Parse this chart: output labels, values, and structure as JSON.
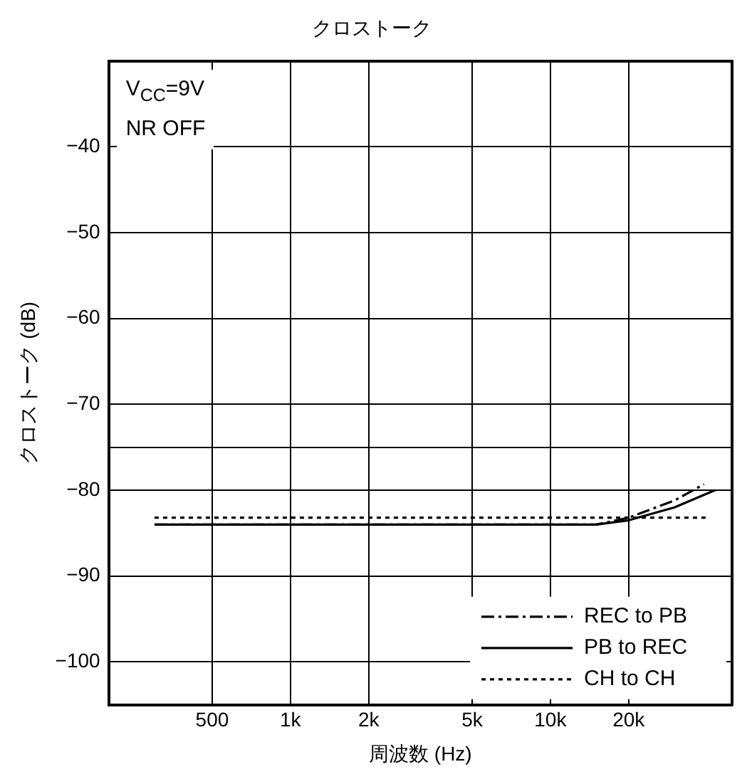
{
  "chart_data": {
    "type": "line",
    "title": "クロストーク",
    "xlabel": "周波数 (Hz)",
    "ylabel": "クロストーク (dB)",
    "annotations": [
      "V$_{CC}$=9V",
      "NR OFF"
    ],
    "log": "x",
    "xlim": [
      200,
      50000
    ],
    "xticks": [
      500,
      {
        "value": 1000,
        "label": "1k"
      },
      {
        "value": 2000,
        "label": "2k"
      },
      {
        "value": 5000,
        "label": "5k"
      },
      {
        "value": 10000,
        "label": "10k"
      },
      {
        "value": 20000,
        "label": "20k"
      }
    ],
    "ylim": [
      -105,
      -30
    ],
    "yticks": [
      -100,
      -90,
      -80,
      {
        "value": -75,
        "label": null
      },
      -70,
      -60,
      -50,
      -40
    ],
    "grid": true,
    "legend": "bottom right",
    "marker": "none",
    "series": [
      {
        "name": "REC to PB",
        "color": "#000000",
        "line_style": "dashed",
        "x": [
          300,
          15000,
          20000,
          30000,
          39000
        ],
        "values": [
          -84,
          -84,
          -83.2,
          -81.2,
          -79.3
        ]
      },
      {
        "name": "PB to REC",
        "color": "#000000",
        "line_style": "solid",
        "x": [
          300,
          15000,
          20000,
          30000,
          43000
        ],
        "values": [
          -84,
          -84,
          -83.5,
          -82,
          -80
        ]
      },
      {
        "name": "CH to CH",
        "color": "#000000",
        "line_style": "dotted",
        "x": [
          300,
          40000
        ],
        "values": [
          -83.2,
          -83.2
        ]
      }
    ]
  }
}
